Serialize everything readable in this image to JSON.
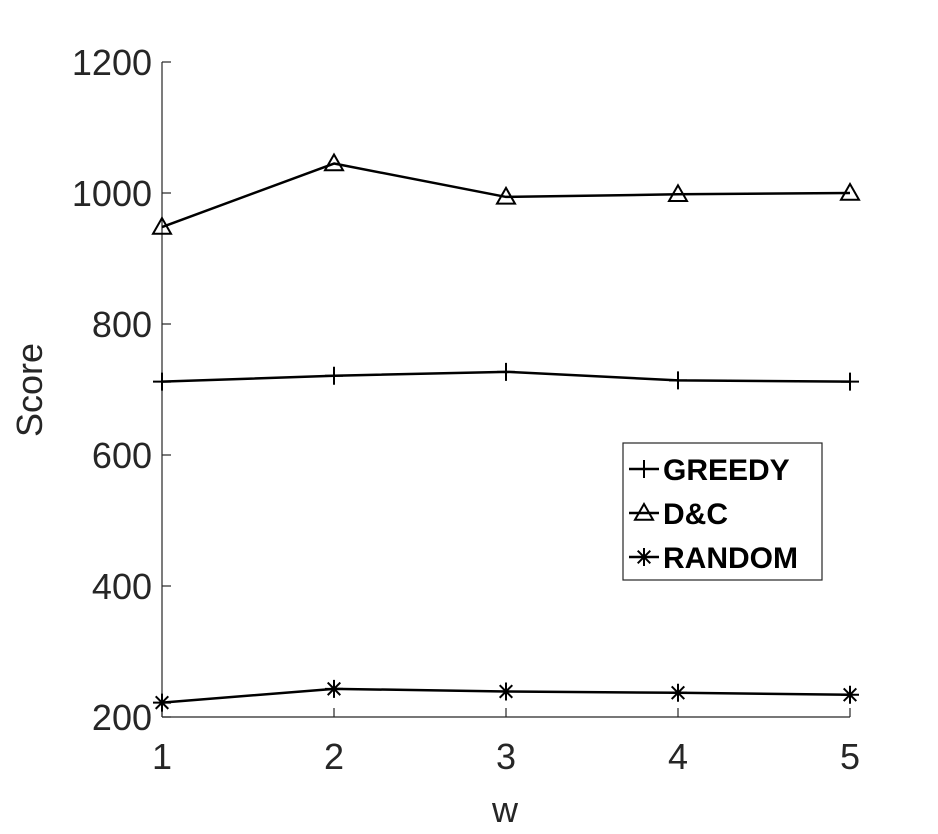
{
  "chart_data": {
    "type": "line",
    "title": "",
    "xlabel": "w",
    "ylabel": "Score",
    "x": [
      1,
      2,
      3,
      4,
      5
    ],
    "xlim": [
      1,
      5
    ],
    "ylim": [
      200,
      1200
    ],
    "xticks": [
      "1",
      "2",
      "3",
      "4",
      "5"
    ],
    "yticks": [
      "200",
      "400",
      "600",
      "800",
      "1000",
      "1200"
    ],
    "grid": false,
    "legend_position": "center-right",
    "series": [
      {
        "name": "GREEDY",
        "marker": "plus",
        "color": "#000000",
        "values": [
          712,
          721,
          727,
          714,
          712
        ]
      },
      {
        "name": "D&C",
        "marker": "triangle",
        "color": "#000000",
        "values": [
          948,
          1045,
          994,
          998,
          1000
        ]
      },
      {
        "name": "RANDOM",
        "marker": "asterisk",
        "color": "#000000",
        "values": [
          222,
          243,
          239,
          237,
          234
        ]
      }
    ]
  }
}
